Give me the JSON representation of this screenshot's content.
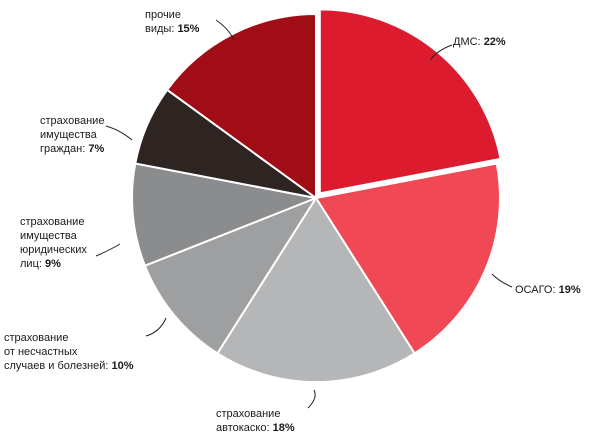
{
  "chart_data": {
    "type": "pie",
    "exploded": "ДМС",
    "slices": [
      {
        "label_lines": [
          "ДМС:"
        ],
        "label": "ДМС",
        "value": 22,
        "pct_text": "22%",
        "color": "#dc1c2e"
      },
      {
        "label_lines": [
          "ОСАГО:"
        ],
        "label": "ОСАГО",
        "value": 19,
        "pct_text": "19%",
        "color": "#f04855"
      },
      {
        "label_lines": [
          "страхование",
          "автокаско:"
        ],
        "label": "страхование автокаско",
        "value": 18,
        "pct_text": "18%",
        "color": "#b4b6b8"
      },
      {
        "label_lines": [
          "страхование",
          "от несчастных",
          "случаев и болезней:"
        ],
        "label": "страхование от несчастных случаев и болезней",
        "value": 10,
        "pct_text": "10%",
        "color": "#9d9fa1"
      },
      {
        "label_lines": [
          "страхование",
          "имущества",
          "юридических",
          "лиц:"
        ],
        "label": "страхование имущества юридических лиц",
        "value": 9,
        "pct_text": "9%",
        "color": "#8a8c8e"
      },
      {
        "label_lines": [
          "страхование",
          "имущества",
          "граждан:"
        ],
        "label": "страхование имущества граждан",
        "value": 7,
        "pct_text": "7%",
        "color": "#2e2422"
      },
      {
        "label_lines": [
          "прочие",
          "виды:"
        ],
        "label": "прочие виды",
        "value": 15,
        "pct_text": "15%",
        "color": "#a10d17"
      }
    ]
  }
}
